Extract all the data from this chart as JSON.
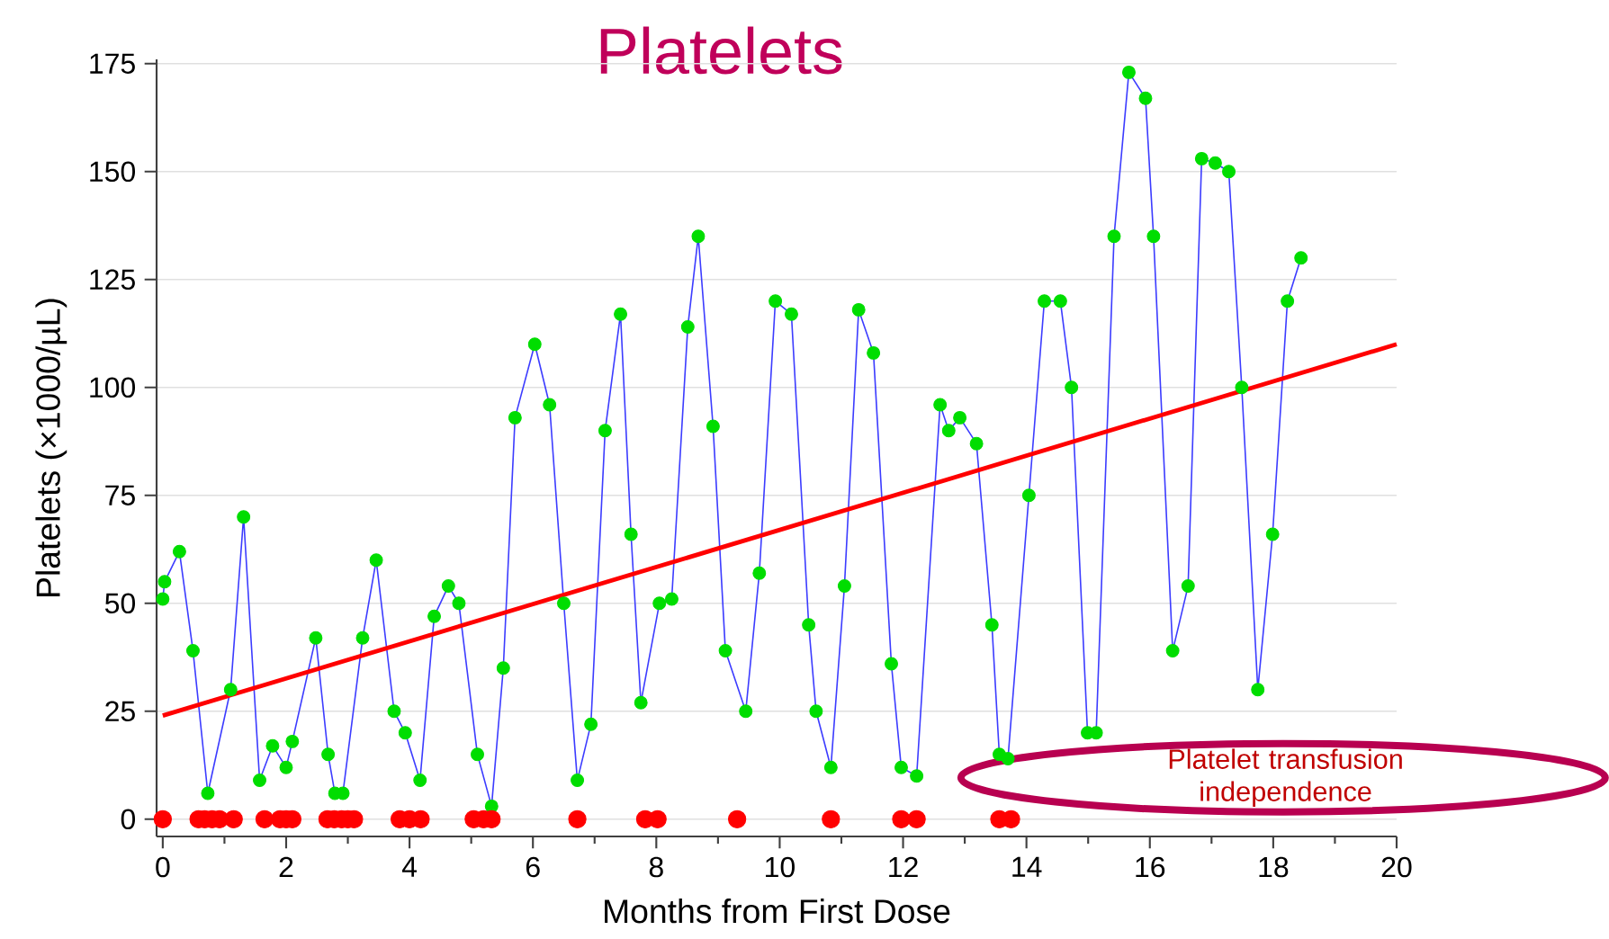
{
  "chart_data": {
    "type": "line",
    "title": "Platelets",
    "xlabel": "Months from First Dose",
    "ylabel": "Platelets (×1000/µL)",
    "xlim": [
      -0.1,
      20
    ],
    "xticks": [
      0,
      2,
      4,
      6,
      8,
      10,
      12,
      14,
      16,
      18,
      20
    ],
    "ylim": [
      -4,
      176
    ],
    "yticks": [
      0,
      25,
      50,
      75,
      100,
      125,
      150,
      175
    ],
    "grid": "y",
    "marker": "circle",
    "annotations": [
      "Platelet transfusion independence"
    ],
    "series": [
      {
        "color": "#3c3cff",
        "x": [
          0.0,
          0.03,
          0.27,
          0.49,
          0.73,
          1.1,
          1.31,
          1.57,
          1.78,
          2.0,
          2.1,
          2.48,
          2.68,
          2.79,
          2.92,
          3.24,
          3.46,
          3.75,
          3.93,
          4.17,
          4.4,
          4.63,
          4.8,
          5.1,
          5.33,
          5.52,
          5.71,
          6.03,
          6.27,
          6.5,
          6.72,
          6.94,
          7.17,
          7.42,
          7.59,
          7.75,
          8.05,
          8.25,
          8.51,
          8.68,
          8.92,
          9.12,
          9.45,
          9.67,
          9.93,
          10.19,
          10.47,
          10.59,
          10.83,
          11.05,
          11.28,
          11.52,
          11.81,
          11.97,
          12.22,
          12.6,
          12.74,
          12.92,
          13.19,
          13.44,
          13.56,
          13.7,
          14.04,
          14.29,
          14.55,
          14.73,
          14.99,
          15.13,
          15.42,
          15.66,
          15.93,
          16.06,
          16.37,
          16.62,
          16.84,
          17.06,
          17.28,
          17.49,
          17.75,
          17.99,
          18.23,
          18.45
        ],
        "values": [
          51,
          55,
          62,
          39,
          6,
          30,
          70,
          9,
          17,
          12,
          18,
          42,
          15,
          6,
          6,
          42,
          60,
          25,
          20,
          9,
          47,
          54,
          50,
          15,
          3,
          35,
          93,
          110,
          96,
          50,
          9,
          22,
          90,
          117,
          66,
          27,
          50,
          51,
          114,
          135,
          91,
          39,
          25,
          57,
          120,
          117,
          45,
          25,
          12,
          54,
          118,
          108,
          36,
          12,
          10,
          96,
          90,
          93,
          87,
          45,
          15,
          14,
          75,
          120,
          120,
          100,
          20,
          20,
          135,
          173,
          167,
          135,
          39,
          54,
          153,
          152,
          150,
          100,
          30,
          66,
          120,
          130
        ],
        "colors": [
          "#00dd00",
          "#00dd00",
          "#00dd00",
          "#00dd00",
          "#00dd00",
          "#00dd00",
          "#00dd00",
          "#00dd00",
          "#00dd00",
          "#00dd00",
          "#00dd00",
          "#00dd00",
          "#00dd00",
          "#00dd00",
          "#00dd00",
          "#00dd00",
          "#00dd00",
          "#00dd00",
          "#00dd00",
          "#00dd00",
          "#00dd00",
          "#00dd00",
          "#00dd00",
          "#00dd00",
          "#00dd00",
          "#00dd00",
          "#00dd00",
          "#00dd00",
          "#00dd00",
          "#00dd00",
          "#00dd00",
          "#00dd00",
          "#00dd00",
          "#00dd00",
          "#00dd00",
          "#00dd00",
          "#00dd00",
          "#00dd00",
          "#00dd00",
          "#00dd00",
          "#00dd00",
          "#00dd00",
          "#00dd00",
          "#00dd00",
          "#00dd00",
          "#00dd00",
          "#00dd00",
          "#00dd00",
          "#00dd00",
          "#00dd00",
          "#00dd00",
          "#00dd00",
          "#00dd00",
          "#00dd00",
          "#00dd00",
          "#00dd00",
          "#00dd00",
          "#00dd00",
          "#00dd00",
          "#00dd00",
          "#00dd00",
          "#00dd00",
          "#00dd00",
          "#00dd00",
          "#00dd00",
          "#00dd00",
          "#00dd00",
          "#00dd00",
          "#00dd00",
          "#00dd00",
          "#00dd00",
          "#00dd00",
          "#00dd00",
          "#00dd00",
          "#00dd00",
          "#00dd00",
          "#00dd00",
          "#00dd00",
          "#00dd00",
          "#00dd00",
          "#00dd00",
          "#00dd00"
        ]
      },
      {
        "type": "scatter",
        "color": "#ff0000",
        "x": [
          0.0,
          0.58,
          0.68,
          0.8,
          0.92,
          1.15,
          1.65,
          1.9,
          2.0,
          2.1,
          2.67,
          2.78,
          2.9,
          3.0,
          3.1,
          3.84,
          4.0,
          4.18,
          5.04,
          5.2,
          5.33,
          6.72,
          7.82,
          8.02,
          9.31,
          10.83,
          11.97,
          12.22,
          13.56,
          13.75
        ],
        "values": [
          0,
          0,
          0,
          0,
          0,
          0,
          0,
          0,
          0,
          0,
          0,
          0,
          0,
          0,
          0,
          0,
          0,
          0,
          0,
          0,
          0,
          0,
          0,
          0,
          0,
          0,
          0,
          0,
          0,
          0
        ]
      },
      {
        "color": "#ff0000",
        "marker": "none",
        "x": [
          0,
          20
        ],
        "values": [
          24,
          110
        ]
      }
    ]
  }
}
